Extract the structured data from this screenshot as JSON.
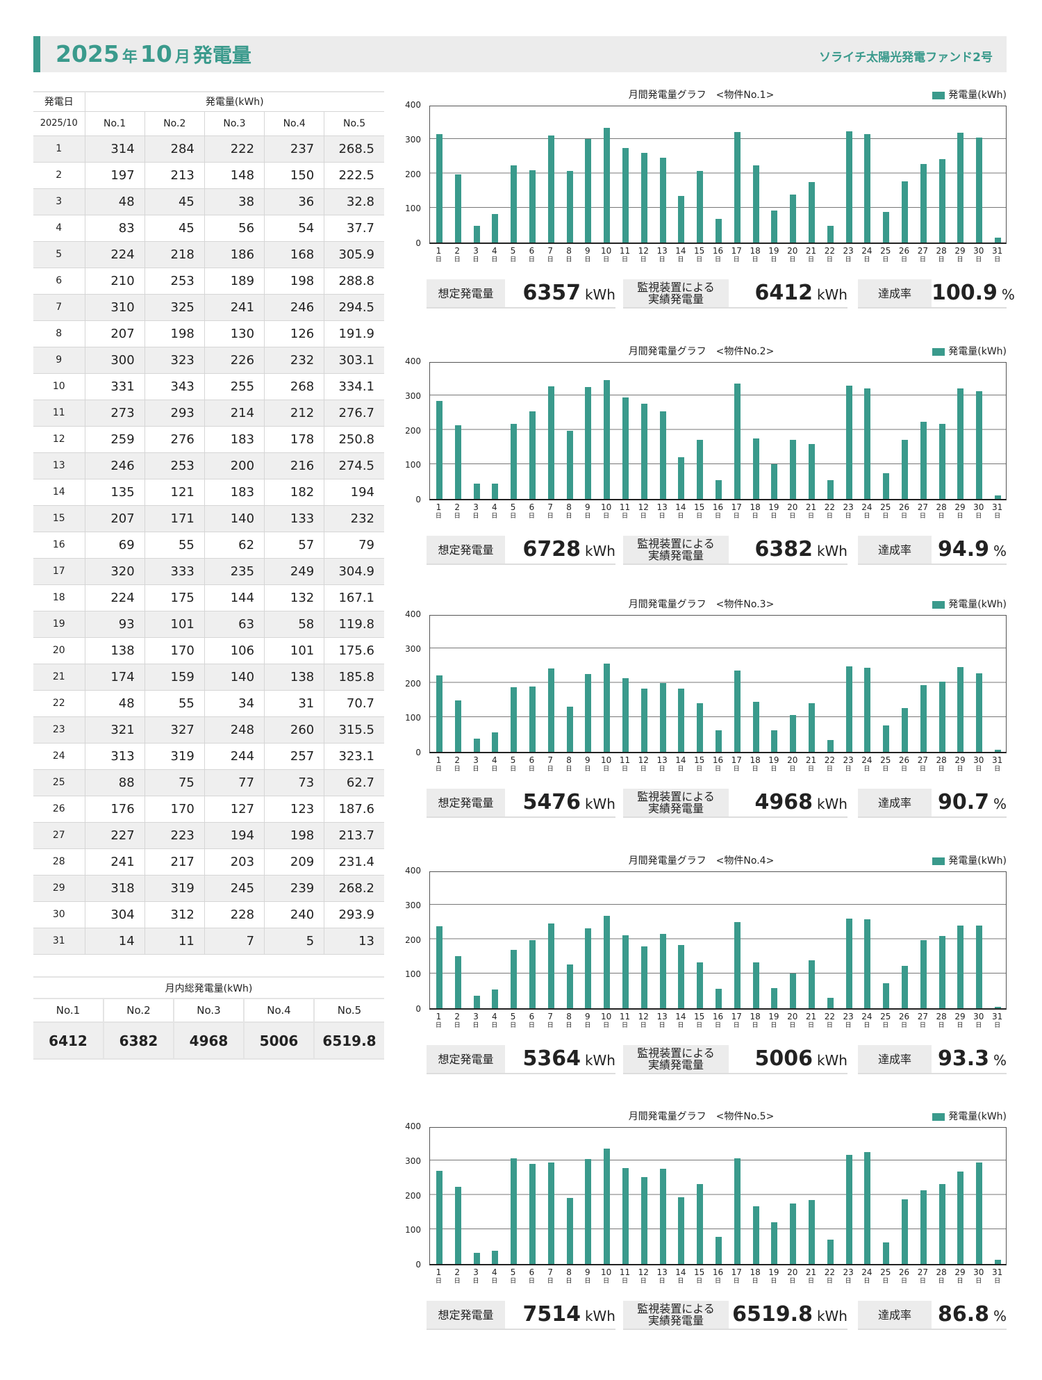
{
  "header": {
    "year": "2025",
    "year_unit": "年",
    "month": "10",
    "month_unit": "月",
    "title": "発電量",
    "fund": "ソライチ太陽光発電ファンド2号"
  },
  "table": {
    "col_day": "発電日",
    "col_gen": "発電量(kWh)",
    "period": "2025/10",
    "cols": [
      "No.1",
      "No.2",
      "No.3",
      "No.4",
      "No.5"
    ],
    "rows": [
      [
        "1",
        "314",
        "284",
        "222",
        "237",
        "268.5"
      ],
      [
        "2",
        "197",
        "213",
        "148",
        "150",
        "222.5"
      ],
      [
        "3",
        "48",
        "45",
        "38",
        "36",
        "32.8"
      ],
      [
        "4",
        "83",
        "45",
        "56",
        "54",
        "37.7"
      ],
      [
        "5",
        "224",
        "218",
        "186",
        "168",
        "305.9"
      ],
      [
        "6",
        "210",
        "253",
        "189",
        "198",
        "288.8"
      ],
      [
        "7",
        "310",
        "325",
        "241",
        "246",
        "294.5"
      ],
      [
        "8",
        "207",
        "198",
        "130",
        "126",
        "191.9"
      ],
      [
        "9",
        "300",
        "323",
        "226",
        "232",
        "303.1"
      ],
      [
        "10",
        "331",
        "343",
        "255",
        "268",
        "334.1"
      ],
      [
        "11",
        "273",
        "293",
        "214",
        "212",
        "276.7"
      ],
      [
        "12",
        "259",
        "276",
        "183",
        "178",
        "250.8"
      ],
      [
        "13",
        "246",
        "253",
        "200",
        "216",
        "274.5"
      ],
      [
        "14",
        "135",
        "121",
        "183",
        "182",
        "194"
      ],
      [
        "15",
        "207",
        "171",
        "140",
        "133",
        "232"
      ],
      [
        "16",
        "69",
        "55",
        "62",
        "57",
        "79"
      ],
      [
        "17",
        "320",
        "333",
        "235",
        "249",
        "304.9"
      ],
      [
        "18",
        "224",
        "175",
        "144",
        "132",
        "167.1"
      ],
      [
        "19",
        "93",
        "101",
        "63",
        "58",
        "119.8"
      ],
      [
        "20",
        "138",
        "170",
        "106",
        "101",
        "175.6"
      ],
      [
        "21",
        "174",
        "159",
        "140",
        "138",
        "185.8"
      ],
      [
        "22",
        "48",
        "55",
        "34",
        "31",
        "70.7"
      ],
      [
        "23",
        "321",
        "327",
        "248",
        "260",
        "315.5"
      ],
      [
        "24",
        "313",
        "319",
        "244",
        "257",
        "323.1"
      ],
      [
        "25",
        "88",
        "75",
        "77",
        "73",
        "62.7"
      ],
      [
        "26",
        "176",
        "170",
        "127",
        "123",
        "187.6"
      ],
      [
        "27",
        "227",
        "223",
        "194",
        "198",
        "213.7"
      ],
      [
        "28",
        "241",
        "217",
        "203",
        "209",
        "231.4"
      ],
      [
        "29",
        "318",
        "319",
        "245",
        "239",
        "268.2"
      ],
      [
        "30",
        "304",
        "312",
        "228",
        "240",
        "293.9"
      ],
      [
        "31",
        "14",
        "11",
        "7",
        "5",
        "13"
      ]
    ]
  },
  "totals": {
    "title": "月内総発電量(kWh)",
    "cols": [
      "No.1",
      "No.2",
      "No.3",
      "No.4",
      "No.5"
    ],
    "values": [
      "6412",
      "6382",
      "4968",
      "5006",
      "6519.8"
    ]
  },
  "labels": {
    "legend": "発電量(kWh)",
    "expected": "想定発電量",
    "actual": "監視装置による実績発電量",
    "rate": "達成率",
    "kwh": "kWh",
    "pct": "%",
    "day_suffix": "日"
  },
  "colors": {
    "accent": "#3a9a8c"
  },
  "chart_data": [
    {
      "type": "bar",
      "title": "月間発電量グラフ　<物件No.1>",
      "expected": "6357",
      "actual": "6412",
      "rate": "100.9",
      "ylim": [
        0,
        400
      ],
      "yticks": [
        0,
        100,
        200,
        300,
        400
      ],
      "values": [
        314,
        197,
        48,
        83,
        224,
        210,
        310,
        207,
        300,
        331,
        273,
        259,
        246,
        135,
        207,
        69,
        320,
        224,
        93,
        138,
        174,
        48,
        321,
        313,
        88,
        176,
        227,
        241,
        318,
        304,
        14
      ]
    },
    {
      "type": "bar",
      "title": "月間発電量グラフ　<物件No.2>",
      "expected": "6728",
      "actual": "6382",
      "rate": "94.9",
      "ylim": [
        0,
        400
      ],
      "yticks": [
        0,
        100,
        200,
        300,
        400
      ],
      "values": [
        284,
        213,
        45,
        45,
        218,
        253,
        325,
        198,
        323,
        343,
        293,
        276,
        253,
        121,
        171,
        55,
        333,
        175,
        101,
        170,
        159,
        55,
        327,
        319,
        75,
        170,
        223,
        217,
        319,
        312,
        11
      ]
    },
    {
      "type": "bar",
      "title": "月間発電量グラフ　<物件No.3>",
      "expected": "5476",
      "actual": "4968",
      "rate": "90.7",
      "ylim": [
        0,
        400
      ],
      "yticks": [
        0,
        100,
        200,
        300,
        400
      ],
      "values": [
        222,
        148,
        38,
        56,
        186,
        189,
        241,
        130,
        226,
        255,
        214,
        183,
        200,
        183,
        140,
        62,
        235,
        144,
        63,
        106,
        140,
        34,
        248,
        244,
        77,
        127,
        194,
        203,
        245,
        228,
        7
      ]
    },
    {
      "type": "bar",
      "title": "月間発電量グラフ　<物件No.4>",
      "expected": "5364",
      "actual": "5006",
      "rate": "93.3",
      "ylim": [
        0,
        400
      ],
      "yticks": [
        0,
        100,
        200,
        300,
        400
      ],
      "values": [
        237,
        150,
        36,
        54,
        168,
        198,
        246,
        126,
        232,
        268,
        212,
        178,
        216,
        182,
        133,
        57,
        249,
        132,
        58,
        101,
        138,
        31,
        260,
        257,
        73,
        123,
        198,
        209,
        239,
        240,
        5
      ]
    },
    {
      "type": "bar",
      "title": "月間発電量グラフ　<物件No.5>",
      "expected": "7514",
      "actual": "6519.8",
      "rate": "86.8",
      "ylim": [
        0,
        400
      ],
      "yticks": [
        0,
        100,
        200,
        300,
        400
      ],
      "values": [
        268.5,
        222.5,
        32.8,
        37.7,
        305.9,
        288.8,
        294.5,
        191.9,
        303.1,
        334.1,
        276.7,
        250.8,
        274.5,
        194,
        232,
        79,
        304.9,
        167.1,
        119.8,
        175.6,
        185.8,
        70.7,
        315.5,
        323.1,
        62.7,
        187.6,
        213.7,
        231.4,
        268.2,
        293.9,
        13
      ]
    }
  ]
}
